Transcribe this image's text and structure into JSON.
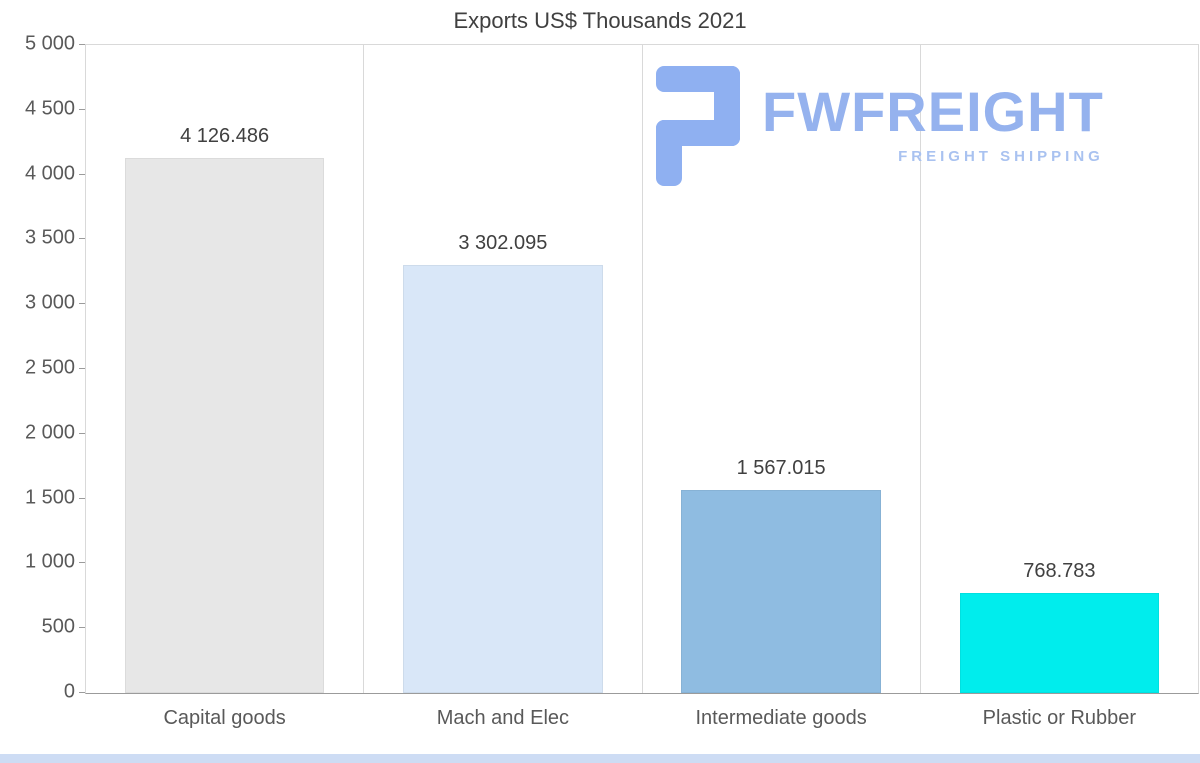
{
  "page": {
    "background": "#ffffff",
    "footer_bar_color": "#cddcf4"
  },
  "logo": {
    "wordmark": "FWFREIGHT",
    "tagline": "FREIGHT SHIPPING",
    "wordmark_color": "#95b2ee",
    "tagline_color": "#a9c2f0",
    "glyph_color": "#8fb0f1",
    "glyph": "fwfreight-logo-mark"
  },
  "chart_data": {
    "type": "bar",
    "title": "Exports US$ Thousands 2021",
    "xlabel": "",
    "ylabel": "",
    "categories": [
      "Capital goods",
      "Mach and Elec",
      "Intermediate goods",
      "Plastic or Rubber"
    ],
    "values": [
      4126.486,
      3302.095,
      1567.015,
      768.783
    ],
    "value_labels": [
      "4 126.486",
      "3 302.095",
      "1 567.015",
      "768.783"
    ],
    "bar_colors": [
      "#e7e7e7",
      "#d9e7f8",
      "#8fbce1",
      "#00eded"
    ],
    "ylim": [
      0,
      5000
    ],
    "y_tick_labels": [
      "5 000",
      "4 500",
      "4 000",
      "3 500",
      "3 000",
      "2 500",
      "2 000",
      "1 500",
      "1 000",
      "500",
      "0"
    ],
    "grid": "vertical category separators, top boundary line, no horizontal gridlines",
    "legend": false
  }
}
